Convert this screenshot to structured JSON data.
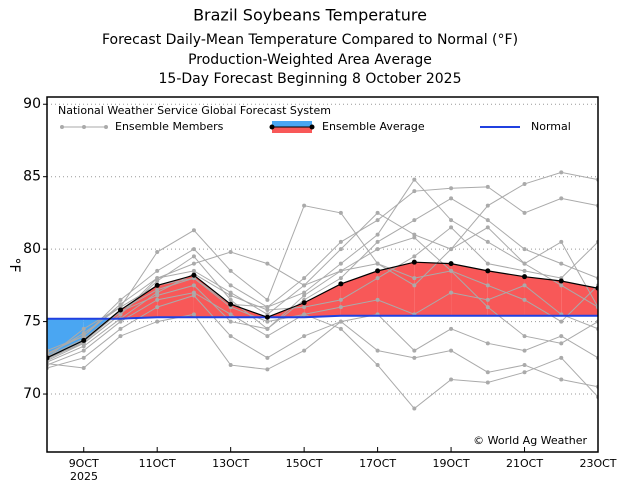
{
  "chart_data": {
    "type": "ensemble",
    "title": "Brazil Soybeans Temperature",
    "subtitles": [
      "Forecast Daily-Mean Temperature Compared to Normal (°F)",
      "Production-Weighted Area Average",
      "15-Day Forecast Beginning 8 October 2025"
    ],
    "y_label": "°F",
    "source_label": "National Weather Service Global Forecast System",
    "copyright": "© World Ag Weather",
    "year_label": "2025",
    "x": [
      8,
      9,
      10,
      11,
      12,
      13,
      14,
      15,
      16,
      17,
      18,
      19,
      20,
      21,
      22,
      23
    ],
    "xlim": [
      8,
      23
    ],
    "xticks": [
      {
        "value": 9,
        "label": "9OCT"
      },
      {
        "value": 11,
        "label": "11OCT"
      },
      {
        "value": 13,
        "label": "13OCT"
      },
      {
        "value": 15,
        "label": "15OCT"
      },
      {
        "value": 17,
        "label": "17OCT"
      },
      {
        "value": 19,
        "label": "19OCT"
      },
      {
        "value": 21,
        "label": "21OCT"
      },
      {
        "value": 23,
        "label": "23OCT"
      }
    ],
    "ylim": [
      66,
      90.5
    ],
    "yticks": [
      70,
      75,
      80,
      85,
      90
    ],
    "grid": true,
    "members": {
      "name": "Ensemble Members",
      "color": "#aaaaaa",
      "values": [
        [
          72.3,
          73.5,
          75.5,
          77.8,
          79.5,
          76.5,
          74.5,
          76.5,
          78,
          80.5,
          82,
          83.5,
          82,
          80,
          79,
          78
        ],
        [
          72.8,
          74,
          76.5,
          78.5,
          80,
          77.5,
          76,
          77,
          79,
          81,
          84.8,
          82,
          80.5,
          79,
          80.5,
          76
        ],
        [
          72,
          73,
          75,
          76.5,
          77,
          75.5,
          74,
          75.5,
          76,
          76.5,
          75.5,
          77,
          76.5,
          77.5,
          75.5,
          74.5
        ],
        [
          72.5,
          74.5,
          76,
          79.8,
          81.3,
          78.5,
          76.5,
          83,
          82.5,
          79,
          77.5,
          80,
          83,
          84.5,
          85.3,
          84.8
        ],
        [
          71.8,
          72.5,
          74.5,
          76,
          76.8,
          74,
          72.5,
          74,
          75,
          73,
          72.5,
          73,
          71.5,
          72,
          71,
          70.5
        ],
        [
          72.6,
          73.8,
          75.8,
          77.2,
          78,
          76,
          75,
          75.5,
          74.5,
          72,
          69,
          71,
          70.8,
          71.5,
          72.5,
          69.8
        ],
        [
          73,
          74,
          76.2,
          78,
          78.5,
          77,
          75.5,
          77.5,
          80,
          82.5,
          81,
          80,
          81.5,
          79,
          77.5,
          76
        ],
        [
          72.2,
          73.3,
          75.2,
          77,
          78.3,
          76.8,
          75.8,
          76,
          76.5,
          78,
          79.5,
          81.5,
          79,
          78.5,
          78,
          80.5
        ],
        [
          72.4,
          73.6,
          75.7,
          76.8,
          77.5,
          75,
          74.5,
          76.8,
          78.5,
          80,
          80.8,
          78.5,
          77.5,
          76.5,
          75,
          77.5
        ],
        [
          72.7,
          74.2,
          76,
          77.5,
          78,
          76.2,
          76,
          78,
          80.5,
          82,
          84,
          84.2,
          84.3,
          82.5,
          83.5,
          83
        ],
        [
          72.1,
          71.8,
          74,
          75,
          75.5,
          72,
          71.7,
          73,
          75,
          75.5,
          73,
          74.5,
          73.5,
          73,
          74,
          72.5
        ],
        [
          72.5,
          73.5,
          75.5,
          78,
          79,
          79.8,
          79,
          77.5,
          78.5,
          79,
          78,
          78.5,
          76,
          74,
          73.5,
          75
        ]
      ]
    },
    "average": {
      "name": "Ensemble Average",
      "color": "#000000",
      "above_color": "#f85858",
      "below_color": "#4aa6f2",
      "values": [
        72.5,
        73.7,
        75.8,
        77.5,
        78.2,
        76.2,
        75.3,
        76.3,
        77.6,
        78.5,
        79.1,
        79.0,
        78.5,
        78.1,
        77.8,
        77.3
      ]
    },
    "normal": {
      "name": "Normal",
      "color": "#2040e0",
      "values": [
        75.2,
        75.2,
        75.2,
        75.3,
        75.3,
        75.3,
        75.3,
        75.3,
        75.4,
        75.4,
        75.4,
        75.4,
        75.4,
        75.4,
        75.4,
        75.4
      ]
    }
  }
}
